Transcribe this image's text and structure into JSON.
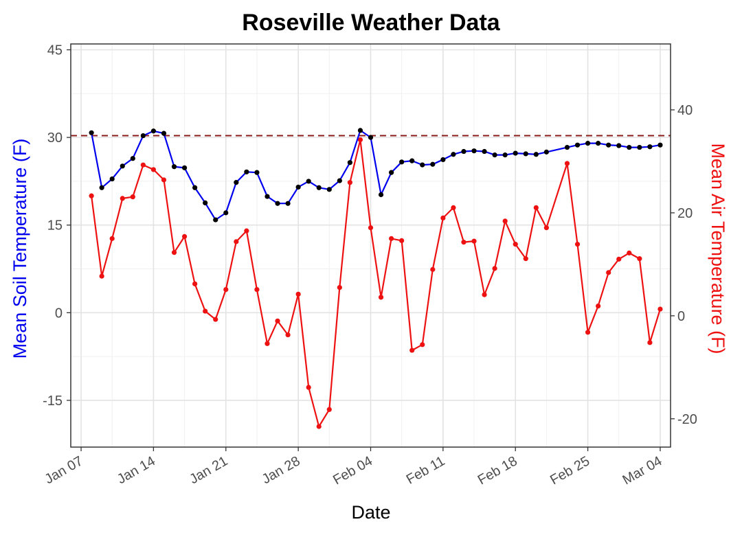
{
  "chart_data": {
    "type": "line",
    "title": "Roseville Weather Data",
    "xlabel": "Date",
    "ylabel_left": "Mean Soil Temperature (F)",
    "ylabel_right": "Mean Air Temperature (F)",
    "x_tick_labels": [
      "Jan 07",
      "Jan 14",
      "Jan 21",
      "Jan 28",
      "Feb 04",
      "Feb 11",
      "Feb 18",
      "Feb 25",
      "Mar 04"
    ],
    "x_tick_dates": [
      "2019-01-07",
      "2019-01-14",
      "2019-01-21",
      "2019-01-28",
      "2019-02-04",
      "2019-02-11",
      "2019-02-18",
      "2019-02-25",
      "2019-03-04"
    ],
    "xlim": [
      "2019-01-06",
      "2019-03-05"
    ],
    "ylim_left": [
      -23,
      46
    ],
    "ylim_right": [
      -25.5,
      52.8
    ],
    "y_ticks_left": [
      -15,
      0,
      15,
      30,
      45
    ],
    "y_ticks_right": [
      -20,
      0,
      20,
      40
    ],
    "reference_line": {
      "axis": "right",
      "value": 35.0,
      "style": "dashed",
      "color": "#8b1a1a"
    },
    "grid": true,
    "colors": {
      "soil_line": "#0000ee",
      "soil_points": "#000000",
      "air": "#ee1111",
      "left_title": "#0000ee",
      "right_title": "#ee1111"
    },
    "series": [
      {
        "axis": "left",
        "x": [
          "2019-01-08",
          "2019-01-09",
          "2019-01-10",
          "2019-01-11",
          "2019-01-12",
          "2019-01-13",
          "2019-01-14",
          "2019-01-15",
          "2019-01-16",
          "2019-01-17",
          "2019-01-18",
          "2019-01-19",
          "2019-01-20",
          "2019-01-21",
          "2019-01-22",
          "2019-01-23",
          "2019-01-24",
          "2019-01-25",
          "2019-01-26",
          "2019-01-27",
          "2019-01-28",
          "2019-01-29",
          "2019-01-30",
          "2019-01-31",
          "2019-02-01",
          "2019-02-02",
          "2019-02-03",
          "2019-02-04",
          "2019-02-05",
          "2019-02-06",
          "2019-02-07",
          "2019-02-08",
          "2019-02-09",
          "2019-02-10",
          "2019-02-11",
          "2019-02-12",
          "2019-02-13",
          "2019-02-14",
          "2019-02-15",
          "2019-02-16",
          "2019-02-17",
          "2019-02-18",
          "2019-02-19",
          "2019-02-20",
          "2019-02-21",
          "2019-02-23",
          "2019-02-24",
          "2019-02-25",
          "2019-02-26",
          "2019-02-27",
          "2019-02-28",
          "2019-03-01",
          "2019-03-02",
          "2019-03-03",
          "2019-03-04"
        ],
        "values": [
          30.8,
          21.4,
          22.9,
          25.1,
          26.4,
          30.3,
          31.1,
          30.7,
          25.0,
          24.8,
          21.4,
          18.8,
          15.9,
          17.1,
          22.3,
          24.1,
          24.0,
          19.9,
          18.7,
          18.7,
          21.5,
          22.5,
          21.4,
          21.1,
          22.6,
          25.7,
          31.2,
          30.0,
          20.2,
          24.0,
          25.8,
          26.0,
          25.3,
          25.4,
          26.2,
          27.1,
          27.6,
          27.7,
          27.6,
          27.0,
          27.0,
          27.3,
          27.2,
          27.1,
          27.5,
          28.3,
          28.7,
          29.0,
          29.0,
          28.7,
          28.6,
          28.3,
          28.3,
          28.4,
          28.7
        ]
      },
      {
        "axis": "right",
        "x": [
          "2019-01-08",
          "2019-01-09",
          "2019-01-10",
          "2019-01-11",
          "2019-01-12",
          "2019-01-13",
          "2019-01-14",
          "2019-01-15",
          "2019-01-16",
          "2019-01-17",
          "2019-01-18",
          "2019-01-19",
          "2019-01-20",
          "2019-01-21",
          "2019-01-22",
          "2019-01-23",
          "2019-01-24",
          "2019-01-25",
          "2019-01-26",
          "2019-01-27",
          "2019-01-28",
          "2019-01-29",
          "2019-01-30",
          "2019-01-31",
          "2019-02-01",
          "2019-02-02",
          "2019-02-03",
          "2019-02-04",
          "2019-02-05",
          "2019-02-06",
          "2019-02-07",
          "2019-02-08",
          "2019-02-09",
          "2019-02-10",
          "2019-02-11",
          "2019-02-12",
          "2019-02-13",
          "2019-02-14",
          "2019-02-15",
          "2019-02-16",
          "2019-02-17",
          "2019-02-18",
          "2019-02-19",
          "2019-02-20",
          "2019-02-21",
          "2019-02-23",
          "2019-02-24",
          "2019-02-25",
          "2019-02-26",
          "2019-02-27",
          "2019-02-28",
          "2019-03-01",
          "2019-03-02",
          "2019-03-03",
          "2019-03-04"
        ],
        "values": [
          23.3,
          7.7,
          15.0,
          22.8,
          23.1,
          29.3,
          28.4,
          26.4,
          12.3,
          15.4,
          6.2,
          0.9,
          -0.7,
          5.1,
          14.4,
          16.5,
          5.1,
          -5.4,
          -1.0,
          -3.7,
          4.2,
          -13.9,
          -21.5,
          -18.2,
          5.5,
          25.9,
          34.2,
          17.1,
          3.6,
          15.0,
          14.6,
          -6.7,
          -5.6,
          9.0,
          19.0,
          21.0,
          14.3,
          14.5,
          4.1,
          9.2,
          18.4,
          13.9,
          11.1,
          21.0,
          17.1,
          29.6,
          13.9,
          -3.2,
          1.9,
          8.4,
          11.0,
          12.2,
          11.1,
          -5.2,
          1.3
        ]
      }
    ]
  }
}
